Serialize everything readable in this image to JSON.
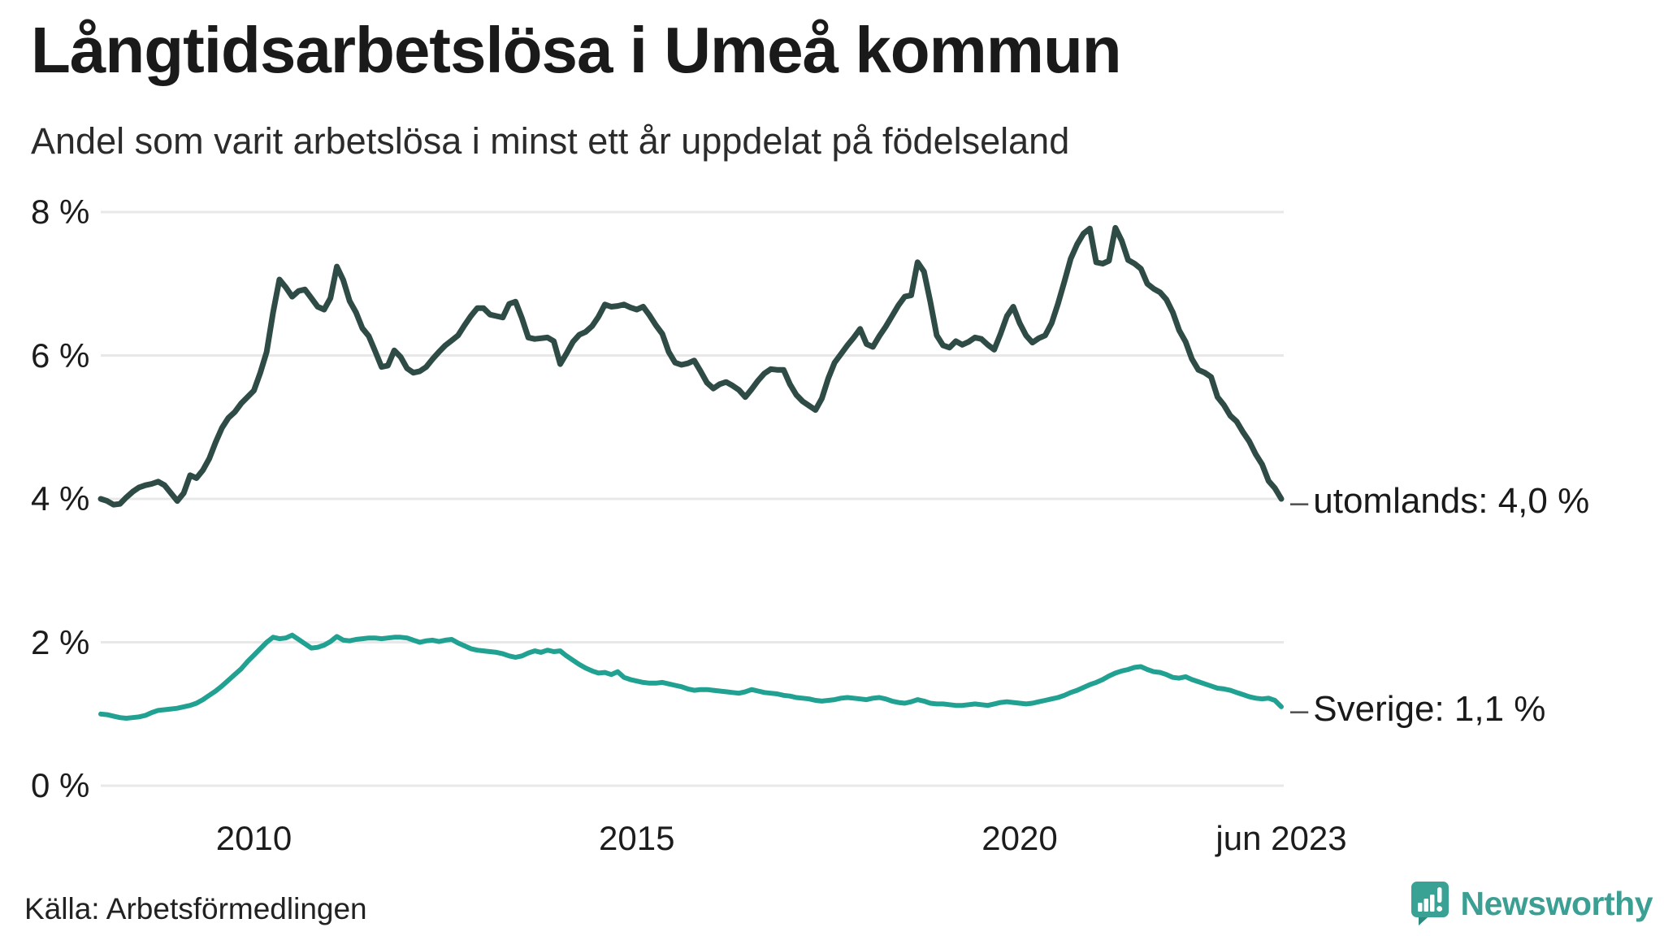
{
  "header": {
    "title": "Långtidsarbetslösa i Umeå kommun",
    "subtitle": "Andel som varit arbetslösa i minst ett år uppdelat på födelseland"
  },
  "footer": {
    "source": "Källa: Arbetsförmedlingen",
    "brand_name": "Newsworthy",
    "brand_color": "#3ba093",
    "brand_icon": "newsworthy-speech-bubble-bar-chart-icon"
  },
  "colors": {
    "grid": "#e8e8e8",
    "text": "#1c1c1c",
    "dash": "#555555"
  },
  "chart_data": {
    "type": "line",
    "title": "Långtidsarbetslösa i Umeå kommun",
    "subtitle": "Andel som varit arbetslösa i minst ett år uppdelat på födelseland",
    "x_unit": "month",
    "x_start": "2008-01",
    "x_end": "2023-06",
    "ylim": [
      0,
      8
    ],
    "grid": "horizontal",
    "legend_position": "end-labels-right",
    "y_ticks": [
      {
        "label": "8 %",
        "value": 8
      },
      {
        "label": "6 %",
        "value": 6
      },
      {
        "label": "4 %",
        "value": 4
      },
      {
        "label": "2 %",
        "value": 2
      },
      {
        "label": "0 %",
        "value": 0
      }
    ],
    "x_ticks": [
      {
        "label": "2010",
        "month_index": 24
      },
      {
        "label": "2015",
        "month_index": 84
      },
      {
        "label": "2020",
        "month_index": 144
      },
      {
        "label": "jun 2023",
        "month_index": 185
      }
    ],
    "series": [
      {
        "name": "utomlands",
        "end_label": "utomlands: 4,0 %",
        "end_value_text": "4,0 %",
        "color": "#2e4b45",
        "stroke_width": 7,
        "values": [
          4.0,
          3.97,
          3.92,
          3.93,
          4.02,
          4.1,
          4.16,
          4.19,
          4.21,
          4.24,
          4.19,
          4.08,
          3.97,
          4.08,
          4.33,
          4.29,
          4.4,
          4.56,
          4.79,
          4.99,
          5.13,
          5.21,
          5.33,
          5.42,
          5.51,
          5.76,
          6.05,
          6.6,
          7.06,
          6.95,
          6.82,
          6.9,
          6.92,
          6.8,
          6.68,
          6.64,
          6.8,
          7.24,
          7.05,
          6.76,
          6.6,
          6.38,
          6.27,
          6.06,
          5.84,
          5.86,
          6.07,
          5.98,
          5.82,
          5.76,
          5.78,
          5.84,
          5.95,
          6.05,
          6.14,
          6.21,
          6.28,
          6.42,
          6.55,
          6.66,
          6.66,
          6.57,
          6.55,
          6.53,
          6.72,
          6.75,
          6.52,
          6.25,
          6.23,
          6.24,
          6.25,
          6.2,
          5.88,
          6.03,
          6.19,
          6.29,
          6.33,
          6.41,
          6.54,
          6.71,
          6.68,
          6.69,
          6.71,
          6.67,
          6.64,
          6.68,
          6.56,
          6.42,
          6.3,
          6.05,
          5.9,
          5.87,
          5.89,
          5.93,
          5.78,
          5.62,
          5.54,
          5.6,
          5.63,
          5.58,
          5.52,
          5.42,
          5.53,
          5.65,
          5.75,
          5.81,
          5.8,
          5.8,
          5.6,
          5.45,
          5.36,
          5.3,
          5.24,
          5.4,
          5.68,
          5.9,
          6.02,
          6.14,
          6.25,
          6.37,
          6.16,
          6.12,
          6.27,
          6.4,
          6.55,
          6.7,
          6.82,
          6.84,
          7.3,
          7.17,
          6.75,
          6.28,
          6.14,
          6.11,
          6.2,
          6.15,
          6.19,
          6.25,
          6.23,
          6.15,
          6.08,
          6.3,
          6.55,
          6.68,
          6.45,
          6.28,
          6.18,
          6.24,
          6.28,
          6.45,
          6.72,
          7.03,
          7.35,
          7.55,
          7.7,
          7.77,
          7.3,
          7.28,
          7.32,
          7.78,
          7.6,
          7.33,
          7.28,
          7.21,
          7.0,
          6.93,
          6.88,
          6.78,
          6.6,
          6.35,
          6.19,
          5.95,
          5.8,
          5.76,
          5.7,
          5.42,
          5.31,
          5.16,
          5.08,
          4.93,
          4.8,
          4.62,
          4.48,
          4.25,
          4.15,
          4.0
        ]
      },
      {
        "name": "Sverige",
        "end_label": "Sverige: 1,1 %",
        "end_value_text": "1,1 %",
        "color": "#21a191",
        "stroke_width": 6,
        "values": [
          1.0,
          0.99,
          0.97,
          0.95,
          0.94,
          0.95,
          0.96,
          0.98,
          1.02,
          1.05,
          1.06,
          1.07,
          1.08,
          1.1,
          1.12,
          1.15,
          1.2,
          1.26,
          1.32,
          1.39,
          1.47,
          1.55,
          1.63,
          1.73,
          1.82,
          1.91,
          2.0,
          2.07,
          2.05,
          2.06,
          2.1,
          2.04,
          1.98,
          1.92,
          1.93,
          1.96,
          2.01,
          2.08,
          2.03,
          2.02,
          2.04,
          2.05,
          2.06,
          2.06,
          2.05,
          2.06,
          2.07,
          2.07,
          2.06,
          2.03,
          2.0,
          2.02,
          2.03,
          2.01,
          2.03,
          2.04,
          1.99,
          1.95,
          1.91,
          1.89,
          1.88,
          1.87,
          1.86,
          1.84,
          1.81,
          1.79,
          1.81,
          1.85,
          1.88,
          1.86,
          1.89,
          1.87,
          1.88,
          1.81,
          1.75,
          1.69,
          1.64,
          1.6,
          1.57,
          1.58,
          1.55,
          1.59,
          1.51,
          1.48,
          1.46,
          1.44,
          1.43,
          1.43,
          1.44,
          1.42,
          1.4,
          1.38,
          1.35,
          1.33,
          1.34,
          1.34,
          1.33,
          1.32,
          1.31,
          1.3,
          1.29,
          1.31,
          1.34,
          1.32,
          1.3,
          1.29,
          1.28,
          1.26,
          1.25,
          1.23,
          1.22,
          1.21,
          1.19,
          1.18,
          1.19,
          1.2,
          1.22,
          1.23,
          1.22,
          1.21,
          1.2,
          1.22,
          1.23,
          1.21,
          1.18,
          1.16,
          1.15,
          1.17,
          1.2,
          1.18,
          1.15,
          1.14,
          1.14,
          1.13,
          1.12,
          1.12,
          1.13,
          1.14,
          1.13,
          1.12,
          1.14,
          1.16,
          1.17,
          1.16,
          1.15,
          1.14,
          1.15,
          1.17,
          1.19,
          1.21,
          1.23,
          1.26,
          1.3,
          1.33,
          1.37,
          1.41,
          1.44,
          1.48,
          1.53,
          1.57,
          1.6,
          1.62,
          1.65,
          1.66,
          1.62,
          1.59,
          1.58,
          1.55,
          1.51,
          1.5,
          1.52,
          1.48,
          1.45,
          1.42,
          1.39,
          1.36,
          1.35,
          1.33,
          1.3,
          1.27,
          1.24,
          1.22,
          1.21,
          1.22,
          1.19,
          1.1
        ]
      }
    ]
  }
}
